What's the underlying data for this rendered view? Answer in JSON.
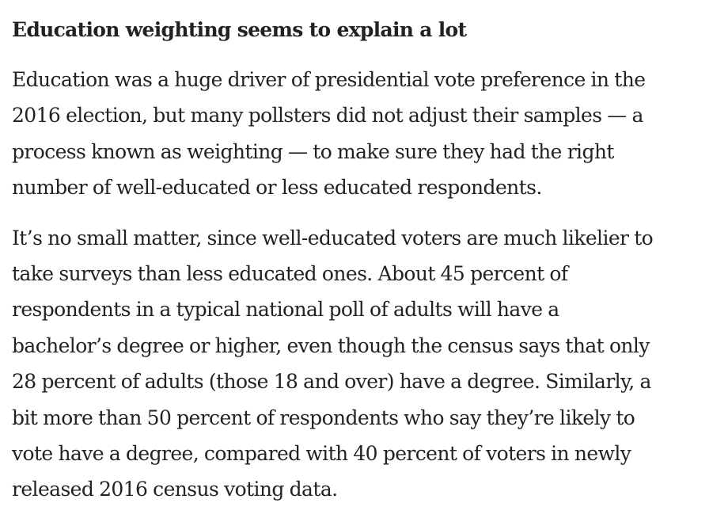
{
  "article": {
    "heading": "Education weighting seems to explain a lot",
    "paragraphs": [
      {
        "lines": [
          "Education was a huge driver of presidential vote preference in the",
          "2016 election, but many pollsters did not adjust their samples — a",
          "process known as weighting — to make sure they had the right",
          "number of well-educated or less educated respondents."
        ]
      },
      {
        "lines": [
          "It’s no small matter, since well-educated voters are much likelier to",
          "take surveys than less educated ones. About 45 percent of",
          "respondents in a typical national poll of adults will have a",
          "bachelor’s degree or higher, even though the census says that only",
          "28 percent of adults (those 18 and over) have a degree. Similarly, a",
          "bit more than 50 percent of respondents who say they’re likely to",
          "vote have a degree, compared with 40 percent of voters in newly",
          "released 2016 census voting data."
        ]
      }
    ]
  }
}
